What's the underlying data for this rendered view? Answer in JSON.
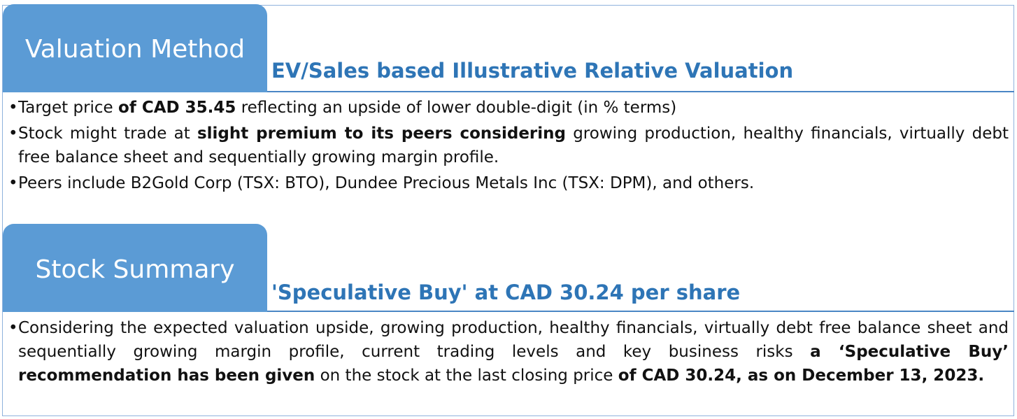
{
  "valuation": {
    "tab_label": "Valuation Method",
    "subtitle": "EV/Sales based Illustrative Relative Valuation",
    "bullets": [
      {
        "segments": [
          {
            "text": "Target price ",
            "bold": false
          },
          {
            "text": "of CAD 35.45",
            "bold": true
          },
          {
            "text": " reflecting an upside of lower double-digit (in % terms)",
            "bold": false
          }
        ]
      },
      {
        "segments": [
          {
            "text": "Stock might trade at ",
            "bold": false
          },
          {
            "text": "slight premium to its peers considering",
            "bold": true
          },
          {
            "text": " growing production, healthy financials, virtually debt free balance sheet and sequentially growing margin profile.",
            "bold": false
          }
        ]
      },
      {
        "segments": [
          {
            "text": "Peers include B2Gold Corp (TSX: BTO), Dundee Precious Metals Inc (TSX: DPM), and others.",
            "bold": false
          }
        ]
      }
    ]
  },
  "summary": {
    "tab_label": "Stock Summary",
    "subtitle": "'Speculative Buy' at CAD 30.24 per share",
    "bullets": [
      {
        "segments": [
          {
            "text": "Considering the expected valuation upside, growing production, healthy financials, virtually debt free balance sheet and sequentially growing margin profile, current trading levels and key business risks ",
            "bold": false
          },
          {
            "text": "a ‘Speculative Buy’ recommendation has been given",
            "bold": true
          },
          {
            "text": " on the stock at the last closing price ",
            "bold": false
          },
          {
            "text": "of CAD 30.24, as on December 13, 2023.",
            "bold": true
          }
        ]
      }
    ]
  }
}
